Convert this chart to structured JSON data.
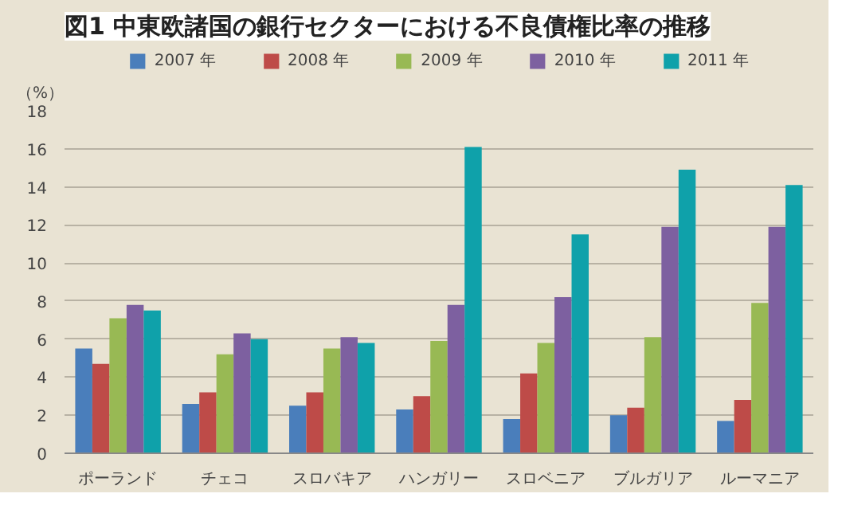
{
  "chart_data": {
    "type": "bar",
    "title": "図1 中東欧諸国の銀行セクターにおける不良債権比率の推移",
    "ylabel": "（%）",
    "categories": [
      "ポーランド",
      "チェコ",
      "スロバキア",
      "ハンガリー",
      "スロベニア",
      "ブルガリア",
      "ルーマニア"
    ],
    "series": [
      {
        "name": "2007 年",
        "color": "#4a7ebb",
        "values": [
          5.5,
          2.6,
          2.5,
          2.3,
          1.8,
          2.0,
          1.7
        ]
      },
      {
        "name": "2008 年",
        "color": "#be4b48",
        "values": [
          4.7,
          3.2,
          3.2,
          3.0,
          4.2,
          2.4,
          2.8
        ]
      },
      {
        "name": "2009 年",
        "color": "#98b954",
        "values": [
          7.1,
          5.2,
          5.5,
          5.9,
          5.8,
          6.1,
          7.9
        ]
      },
      {
        "name": "2010 年",
        "color": "#7d60a0",
        "values": [
          7.8,
          6.3,
          6.1,
          7.8,
          8.2,
          11.9,
          11.9
        ]
      },
      {
        "name": "2011 年",
        "color": "#0fa1aa",
        "values": [
          7.5,
          6.0,
          5.8,
          16.1,
          11.5,
          14.9,
          14.1
        ]
      }
    ],
    "ylim": [
      0,
      18
    ],
    "yticks": [
      0,
      2,
      4,
      6,
      8,
      10,
      12,
      14,
      16,
      18
    ],
    "grid": "y",
    "legend": "top"
  }
}
